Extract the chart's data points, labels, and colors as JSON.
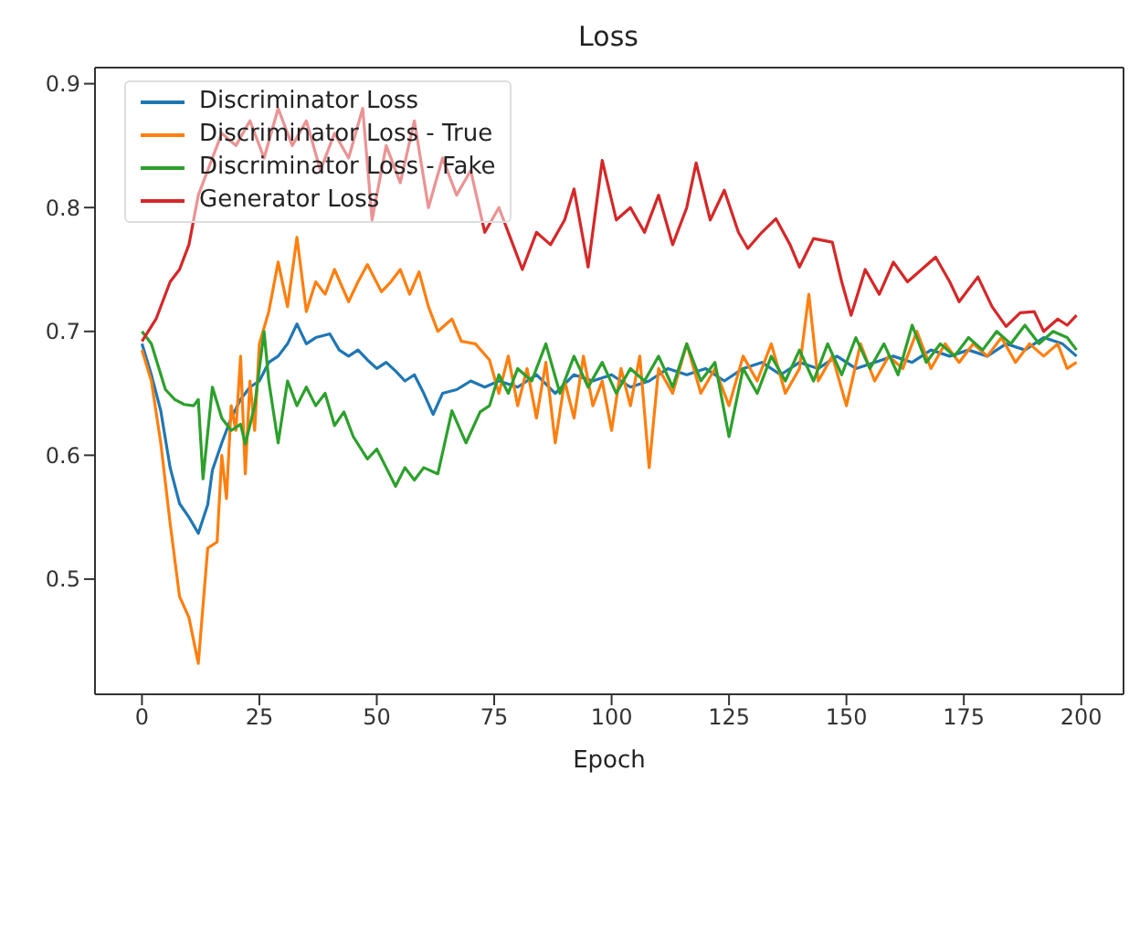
{
  "chart_data": {
    "type": "line",
    "title": "Loss",
    "xlabel": "Epoch",
    "xlim": [
      -10,
      209
    ],
    "xticks": [
      0,
      25,
      50,
      75,
      100,
      125,
      150,
      175,
      200
    ],
    "ylim": [
      0.407,
      0.913
    ],
    "yticks": [
      0.5,
      0.6,
      0.7,
      0.8,
      0.9
    ],
    "grid": false,
    "legend": "top left",
    "line_style": "solid",
    "marker": "none",
    "series": [
      {
        "name": "Discriminator Loss",
        "color": "#1f77b4",
        "x": [
          0,
          2,
          4,
          6,
          8,
          10,
          12,
          14,
          15,
          17,
          19,
          21,
          23,
          25,
          27,
          29,
          31,
          33,
          35,
          37,
          40,
          42,
          44,
          46,
          48,
          50,
          52,
          54,
          56,
          58,
          60,
          62,
          64,
          67,
          70,
          73,
          76,
          80,
          84,
          88,
          92,
          96,
          100,
          104,
          108,
          112,
          116,
          120,
          124,
          128,
          132,
          136,
          140,
          144,
          148,
          152,
          156,
          160,
          164,
          168,
          172,
          176,
          180,
          184,
          188,
          192,
          196,
          199
        ],
        "values": [
          0.69,
          0.665,
          0.636,
          0.59,
          0.561,
          0.55,
          0.537,
          0.56,
          0.588,
          0.61,
          0.63,
          0.645,
          0.655,
          0.66,
          0.675,
          0.68,
          0.69,
          0.706,
          0.69,
          0.695,
          0.698,
          0.685,
          0.68,
          0.685,
          0.677,
          0.67,
          0.675,
          0.668,
          0.66,
          0.665,
          0.65,
          0.633,
          0.65,
          0.653,
          0.66,
          0.655,
          0.66,
          0.655,
          0.665,
          0.65,
          0.665,
          0.66,
          0.665,
          0.655,
          0.66,
          0.67,
          0.665,
          0.67,
          0.66,
          0.67,
          0.675,
          0.665,
          0.675,
          0.67,
          0.68,
          0.67,
          0.675,
          0.68,
          0.675,
          0.685,
          0.68,
          0.685,
          0.68,
          0.69,
          0.685,
          0.695,
          0.69,
          0.68
        ]
      },
      {
        "name": "Discriminator Loss - True",
        "color": "#ff7f0e",
        "x": [
          0,
          2,
          4,
          6,
          8,
          10,
          12,
          14,
          16,
          17,
          18,
          19,
          20,
          21,
          22,
          23,
          24,
          25,
          27,
          29,
          31,
          33,
          35,
          37,
          39,
          41,
          44,
          46,
          48,
          51,
          53,
          55,
          57,
          59,
          61,
          63,
          66,
          68,
          71,
          74,
          76,
          78,
          80,
          82,
          84,
          86,
          88,
          90,
          92,
          94,
          96,
          98,
          100,
          102,
          104,
          106,
          108,
          110,
          113,
          116,
          119,
          122,
          125,
          128,
          131,
          134,
          137,
          140,
          142,
          144,
          147,
          150,
          153,
          156,
          159,
          162,
          165,
          168,
          171,
          174,
          177,
          180,
          183,
          186,
          189,
          192,
          195,
          197,
          199
        ],
        "values": [
          0.685,
          0.66,
          0.61,
          0.545,
          0.486,
          0.469,
          0.432,
          0.525,
          0.53,
          0.6,
          0.565,
          0.64,
          0.62,
          0.68,
          0.585,
          0.66,
          0.62,
          0.69,
          0.716,
          0.756,
          0.72,
          0.776,
          0.716,
          0.74,
          0.73,
          0.75,
          0.724,
          0.74,
          0.754,
          0.732,
          0.74,
          0.75,
          0.73,
          0.748,
          0.72,
          0.7,
          0.71,
          0.692,
          0.69,
          0.677,
          0.65,
          0.68,
          0.64,
          0.67,
          0.63,
          0.675,
          0.61,
          0.66,
          0.63,
          0.68,
          0.64,
          0.66,
          0.62,
          0.67,
          0.64,
          0.68,
          0.59,
          0.67,
          0.65,
          0.69,
          0.65,
          0.67,
          0.64,
          0.68,
          0.66,
          0.69,
          0.65,
          0.67,
          0.73,
          0.66,
          0.68,
          0.64,
          0.69,
          0.66,
          0.68,
          0.67,
          0.7,
          0.67,
          0.69,
          0.675,
          0.69,
          0.68,
          0.695,
          0.675,
          0.69,
          0.68,
          0.69,
          0.67,
          0.675
        ]
      },
      {
        "name": "Discriminator Loss - Fake",
        "color": "#2ca02c",
        "x": [
          0,
          2,
          5,
          7,
          9,
          11,
          12,
          13,
          15,
          17,
          19,
          21,
          22,
          24,
          26,
          27,
          29,
          31,
          33,
          35,
          37,
          39,
          41,
          43,
          45,
          48,
          50,
          52,
          54,
          56,
          58,
          60,
          63,
          66,
          69,
          72,
          74,
          76,
          78,
          80,
          83,
          86,
          89,
          92,
          95,
          98,
          101,
          104,
          107,
          110,
          113,
          116,
          119,
          122,
          125,
          128,
          131,
          134,
          137,
          140,
          143,
          146,
          149,
          152,
          155,
          158,
          161,
          164,
          167,
          170,
          173,
          176,
          179,
          182,
          185,
          188,
          191,
          194,
          197,
          199
        ],
        "values": [
          0.7,
          0.69,
          0.653,
          0.645,
          0.641,
          0.64,
          0.645,
          0.581,
          0.655,
          0.63,
          0.62,
          0.625,
          0.609,
          0.64,
          0.7,
          0.66,
          0.61,
          0.66,
          0.64,
          0.655,
          0.64,
          0.65,
          0.624,
          0.635,
          0.615,
          0.597,
          0.605,
          0.59,
          0.575,
          0.59,
          0.58,
          0.59,
          0.585,
          0.636,
          0.61,
          0.635,
          0.64,
          0.665,
          0.65,
          0.67,
          0.66,
          0.69,
          0.65,
          0.68,
          0.655,
          0.675,
          0.65,
          0.67,
          0.66,
          0.68,
          0.655,
          0.69,
          0.66,
          0.675,
          0.615,
          0.67,
          0.65,
          0.68,
          0.66,
          0.685,
          0.66,
          0.69,
          0.665,
          0.695,
          0.67,
          0.69,
          0.665,
          0.705,
          0.675,
          0.69,
          0.68,
          0.695,
          0.685,
          0.7,
          0.69,
          0.705,
          0.69,
          0.7,
          0.695,
          0.685
        ]
      },
      {
        "name": "Generator Loss",
        "color": "#d62728",
        "x": [
          0,
          3,
          6,
          8,
          10,
          12,
          14,
          17,
          20,
          23,
          26,
          29,
          32,
          35,
          38,
          41,
          44,
          47,
          49,
          52,
          55,
          58,
          61,
          64,
          67,
          70,
          73,
          76,
          79,
          81,
          84,
          87,
          90,
          92,
          95,
          98,
          101,
          104,
          107,
          110,
          113,
          116,
          118,
          121,
          124,
          127,
          129,
          132,
          135,
          138,
          140,
          143,
          147,
          149,
          151,
          154,
          157,
          160,
          163,
          166,
          169,
          172,
          174,
          178,
          181,
          184,
          187,
          190,
          192,
          195,
          197,
          199
        ],
        "values": [
          0.692,
          0.71,
          0.74,
          0.75,
          0.77,
          0.81,
          0.83,
          0.86,
          0.85,
          0.87,
          0.84,
          0.88,
          0.85,
          0.87,
          0.83,
          0.86,
          0.84,
          0.88,
          0.79,
          0.85,
          0.82,
          0.87,
          0.8,
          0.84,
          0.81,
          0.83,
          0.78,
          0.8,
          0.77,
          0.75,
          0.78,
          0.77,
          0.79,
          0.815,
          0.752,
          0.838,
          0.79,
          0.8,
          0.78,
          0.81,
          0.77,
          0.8,
          0.836,
          0.79,
          0.814,
          0.78,
          0.767,
          0.78,
          0.791,
          0.77,
          0.752,
          0.775,
          0.772,
          0.74,
          0.713,
          0.75,
          0.73,
          0.756,
          0.74,
          0.75,
          0.76,
          0.74,
          0.724,
          0.744,
          0.72,
          0.704,
          0.715,
          0.716,
          0.7,
          0.71,
          0.705,
          0.713
        ]
      }
    ]
  }
}
